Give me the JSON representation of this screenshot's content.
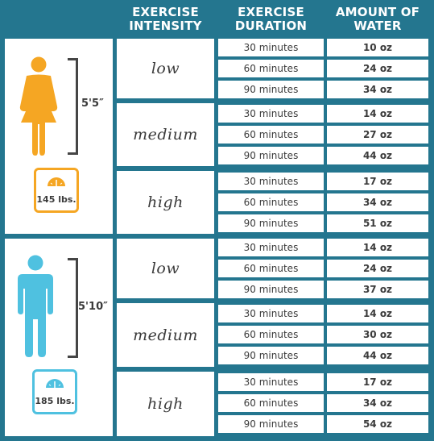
{
  "header": {
    "intensity": "EXERCISE\nINTENSITY",
    "duration": "EXERCISE\nDURATION",
    "water": "AMOUNT OF\nWATER"
  },
  "colors": {
    "background": "#24768f",
    "female": "#f5a623",
    "male": "#4fc1e0"
  },
  "people": [
    {
      "icon": "woman-icon",
      "height": "5'5″",
      "weight": "145 lbs.",
      "rows": [
        {
          "intensity": "low",
          "items": [
            {
              "duration": "30 minutes",
              "water": "10 oz"
            },
            {
              "duration": "60 minutes",
              "water": "24 oz"
            },
            {
              "duration": "90 minutes",
              "water": "34 oz"
            }
          ]
        },
        {
          "intensity": "medium",
          "items": [
            {
              "duration": "30 minutes",
              "water": "14 oz"
            },
            {
              "duration": "60 minutes",
              "water": "27 oz"
            },
            {
              "duration": "90 minutes",
              "water": "44 oz"
            }
          ]
        },
        {
          "intensity": "high",
          "items": [
            {
              "duration": "30 minutes",
              "water": "17 oz"
            },
            {
              "duration": "60 minutes",
              "water": "34 oz"
            },
            {
              "duration": "90 minutes",
              "water": "51 oz"
            }
          ]
        }
      ]
    },
    {
      "icon": "man-icon",
      "height": "5'10″",
      "weight": "185 lbs.",
      "rows": [
        {
          "intensity": "low",
          "items": [
            {
              "duration": "30 minutes",
              "water": "14 oz"
            },
            {
              "duration": "60 minutes",
              "water": "24 oz"
            },
            {
              "duration": "90 minutes",
              "water": "37 oz"
            }
          ]
        },
        {
          "intensity": "medium",
          "items": [
            {
              "duration": "30 minutes",
              "water": "14 oz"
            },
            {
              "duration": "60 minutes",
              "water": "30 oz"
            },
            {
              "duration": "90 minutes",
              "water": "44 oz"
            }
          ]
        },
        {
          "intensity": "high",
          "items": [
            {
              "duration": "30 minutes",
              "water": "17 oz"
            },
            {
              "duration": "60 minutes",
              "water": "34 oz"
            },
            {
              "duration": "90 minutes",
              "water": "54 oz"
            }
          ]
        }
      ]
    }
  ]
}
